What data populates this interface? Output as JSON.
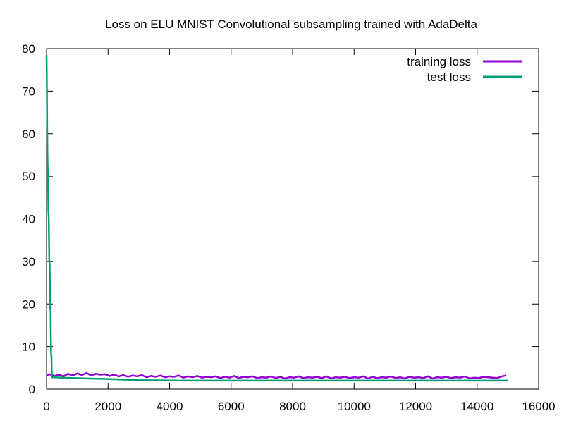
{
  "chart_data": {
    "type": "line",
    "title": "Loss on ELU MNIST Convolutional subsampling trained with AdaDelta",
    "xlabel": "",
    "ylabel": "",
    "xlim": [
      0,
      16000
    ],
    "ylim": [
      0,
      80
    ],
    "x_ticks": [
      0,
      2000,
      4000,
      6000,
      8000,
      10000,
      12000,
      14000,
      16000
    ],
    "y_ticks": [
      0,
      10,
      20,
      30,
      40,
      50,
      60,
      70,
      80
    ],
    "grid": false,
    "legend_position": "top-right",
    "series": [
      {
        "name": "training loss",
        "color": "#9400d3",
        "x": [
          0,
          100,
          250,
          400,
          550,
          700,
          850,
          1000,
          1150,
          1300,
          1450,
          1600,
          1750,
          1900,
          2050,
          2200,
          2350,
          2500,
          2650,
          2800,
          2950,
          3100,
          3250,
          3400,
          3550,
          3700,
          3850,
          4000,
          4150,
          4300,
          4450,
          4600,
          4750,
          4900,
          5050,
          5200,
          5350,
          5500,
          5650,
          5800,
          5950,
          6100,
          6250,
          6400,
          6550,
          6700,
          6850,
          7000,
          7150,
          7300,
          7450,
          7600,
          7750,
          7900,
          8050,
          8200,
          8350,
          8500,
          8650,
          8800,
          8950,
          9100,
          9250,
          9400,
          9550,
          9700,
          9850,
          10000,
          10150,
          10300,
          10450,
          10600,
          10750,
          10900,
          11050,
          11200,
          11350,
          11500,
          11650,
          11800,
          11950,
          12100,
          12250,
          12400,
          12550,
          12700,
          12850,
          13000,
          13150,
          13300,
          13450,
          13600,
          13750,
          13900,
          14050,
          14200,
          14350,
          14500,
          14650,
          14800,
          14950
        ],
        "y": [
          3.2,
          3.5,
          3.1,
          3.4,
          3.0,
          3.6,
          3.2,
          3.7,
          3.3,
          3.8,
          3.2,
          3.6,
          3.4,
          3.5,
          3.1,
          3.4,
          3.0,
          3.3,
          2.9,
          3.2,
          3.0,
          3.3,
          2.8,
          3.1,
          2.9,
          3.2,
          2.8,
          3.0,
          2.9,
          3.2,
          2.7,
          3.0,
          2.8,
          3.1,
          2.7,
          2.9,
          2.8,
          3.0,
          2.6,
          2.9,
          2.7,
          3.1,
          2.6,
          2.9,
          2.8,
          3.0,
          2.6,
          2.8,
          2.7,
          3.0,
          2.6,
          2.9,
          2.5,
          2.8,
          2.7,
          3.0,
          2.6,
          2.8,
          2.7,
          2.9,
          2.6,
          3.0,
          2.5,
          2.8,
          2.7,
          2.9,
          2.6,
          2.8,
          2.7,
          3.0,
          2.5,
          2.9,
          2.6,
          2.8,
          2.7,
          3.0,
          2.6,
          2.8,
          2.5,
          2.9,
          2.7,
          2.8,
          2.6,
          3.0,
          2.5,
          2.8,
          2.7,
          2.9,
          2.6,
          2.8,
          2.7,
          3.0,
          2.5,
          2.7,
          2.6,
          2.9,
          2.8,
          2.7,
          2.6,
          3.0,
          3.2
        ]
      },
      {
        "name": "test loss",
        "color": "#009e73",
        "x": [
          0,
          10,
          20,
          30,
          40,
          50,
          60,
          70,
          80,
          90,
          100,
          110,
          120,
          130,
          140,
          150,
          160,
          170,
          180,
          190,
          200,
          800,
          1900,
          3000,
          4500,
          6000,
          8000,
          10000,
          12000,
          14000,
          15000
        ],
        "y": [
          78.5,
          72.6,
          61.8,
          55.0,
          51.0,
          48.5,
          42.0,
          40.5,
          35.5,
          30.0,
          29.5,
          24.0,
          19.0,
          18.5,
          12.5,
          8.0,
          7.8,
          3.5,
          2.8,
          2.8,
          2.8,
          2.6,
          2.4,
          2.1,
          2.0,
          2.0,
          2.0,
          2.0,
          2.0,
          2.0,
          2.0
        ]
      }
    ]
  }
}
